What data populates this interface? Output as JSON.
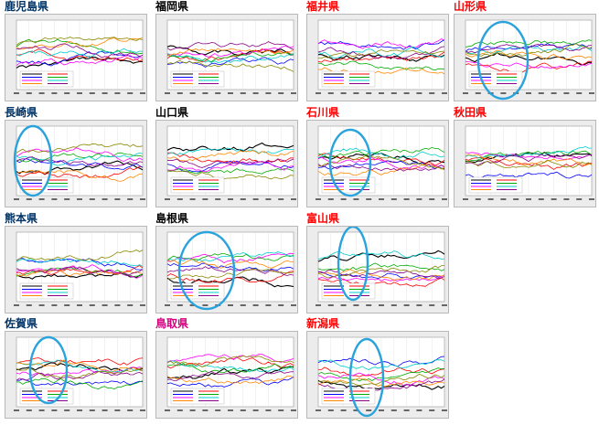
{
  "colors": {
    "title_navy": "#003366",
    "title_black": "#000000",
    "title_red": "#ff0000",
    "title_magenta": "#d4007f",
    "highlight_circle": "#2aa3dc",
    "panel_bg": "#ececec",
    "plot_bg": "#ffffff"
  },
  "series_palette": [
    "#000000",
    "#ff0000",
    "#0000ff",
    "#00aa00",
    "#ff00ff",
    "#00cccc",
    "#ff8800",
    "#880088",
    "#888800",
    "#008888",
    "#aa4444"
  ],
  "panels": [
    {
      "title": "鹿児島県",
      "title_color": "title_navy",
      "highlighted": false
    },
    {
      "title": "福岡県",
      "title_color": "title_black",
      "highlighted": false
    },
    {
      "title": "福井県",
      "title_color": "title_red",
      "highlighted": false
    },
    {
      "title": "山形県",
      "title_color": "title_red",
      "highlighted": true
    },
    {
      "title": "長崎県",
      "title_color": "title_navy",
      "highlighted": true
    },
    {
      "title": "山口県",
      "title_color": "title_black",
      "highlighted": false
    },
    {
      "title": "石川県",
      "title_color": "title_red",
      "highlighted": true
    },
    {
      "title": "秋田県",
      "title_color": "title_red",
      "highlighted": false
    },
    {
      "title": "熊本県",
      "title_color": "title_navy",
      "highlighted": false
    },
    {
      "title": "島根県",
      "title_color": "title_black",
      "highlighted": true
    },
    {
      "title": "富山県",
      "title_color": "title_red",
      "highlighted": true
    },
    {
      "title": "佐賀県",
      "title_color": "title_navy",
      "highlighted": true
    },
    {
      "title": "鳥取県",
      "title_color": "title_magenta",
      "highlighted": false
    },
    {
      "title": "新潟県",
      "title_color": "title_red",
      "highlighted": true
    }
  ],
  "chart_data": {
    "type": "line",
    "description_free": true,
    "panel_count": 14,
    "grid": true,
    "legend": "bottom-left"
  }
}
